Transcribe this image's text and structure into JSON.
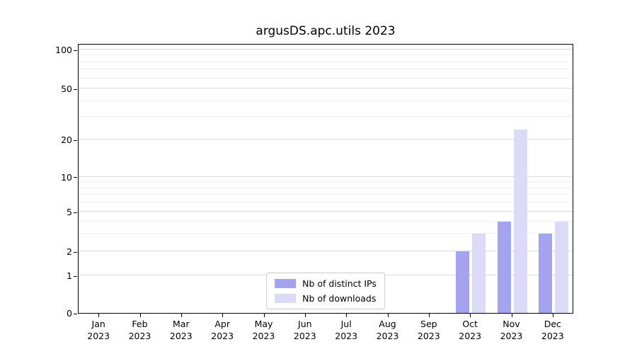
{
  "title": "argusDS.apc.utils 2023",
  "chart_data": {
    "type": "bar",
    "title": "argusDS.apc.utils 2023",
    "xlabel": "",
    "ylabel": "",
    "categories": [
      "Jan",
      "Feb",
      "Mar",
      "Apr",
      "May",
      "Jun",
      "Jul",
      "Aug",
      "Sep",
      "Oct",
      "Nov",
      "Dec"
    ],
    "x_year_label": "2023",
    "series": [
      {
        "name": "Nb of distinct IPs",
        "color": "#a3a3f0",
        "values": [
          0,
          0,
          0,
          0,
          0,
          0,
          0,
          0,
          0,
          2,
          4,
          3
        ]
      },
      {
        "name": "Nb of downloads",
        "color": "#dbdbf8",
        "values": [
          0,
          0,
          0,
          0,
          0,
          0,
          0,
          0,
          0,
          3,
          24,
          4
        ]
      }
    ],
    "yscale": "symlog",
    "ylim": [
      0,
      100
    ],
    "y_major_ticks": [
      0,
      1,
      2,
      5,
      10,
      20,
      50,
      100
    ],
    "y_minor_ticks": [
      3,
      4,
      6,
      7,
      8,
      9,
      30,
      40,
      60,
      70,
      80,
      90
    ],
    "grid": "horizontal",
    "legend_position": "lower center"
  }
}
